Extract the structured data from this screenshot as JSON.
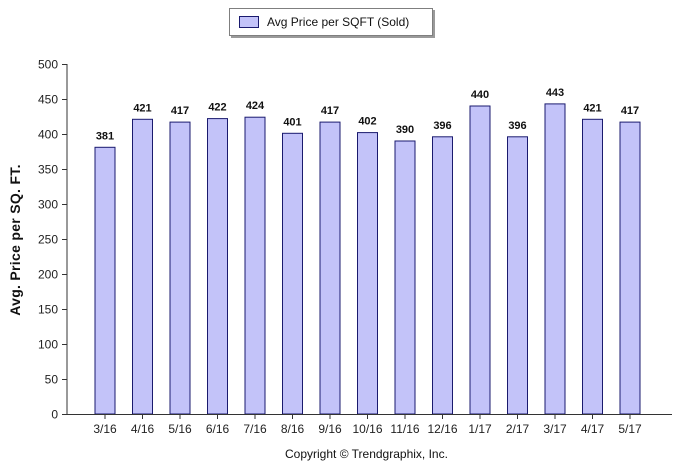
{
  "chart_data": {
    "type": "bar",
    "legend": [
      "Avg Price per SQFT (Sold)"
    ],
    "legend_position": "top-center",
    "ylabel": "Avg. Price per SQ. FT.",
    "xlabel": "",
    "ylim": [
      0,
      500
    ],
    "yticks": [
      0,
      50,
      100,
      150,
      200,
      250,
      300,
      350,
      400,
      450,
      500
    ],
    "grid": false,
    "categories": [
      "3/16",
      "4/16",
      "5/16",
      "6/16",
      "7/16",
      "8/16",
      "9/16",
      "10/16",
      "11/16",
      "12/16",
      "1/17",
      "2/17",
      "3/17",
      "4/17",
      "5/17"
    ],
    "series": [
      {
        "name": "Avg Price per SQFT (Sold)",
        "values": [
          381,
          421,
          417,
          422,
          424,
          401,
          417,
          402,
          390,
          396,
          440,
          396,
          443,
          421,
          417
        ],
        "color": "#c3c3f9",
        "border_color": "#1a1a6e"
      }
    ]
  },
  "footer": {
    "copyright": "Copyright © Trendgraphix, Inc."
  }
}
